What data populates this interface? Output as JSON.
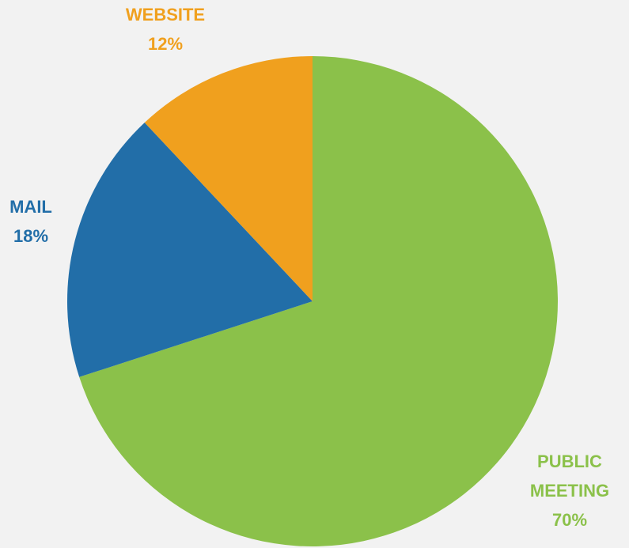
{
  "chart_data": {
    "type": "pie",
    "categories": [
      "PUBLIC MEETING",
      "MAIL",
      "WEBSITE"
    ],
    "values": [
      70,
      18,
      12
    ],
    "value_labels": [
      "70%",
      "18%",
      "12%"
    ],
    "colors": [
      "#8bc14a",
      "#226ea8",
      "#f0a01e"
    ]
  }
}
